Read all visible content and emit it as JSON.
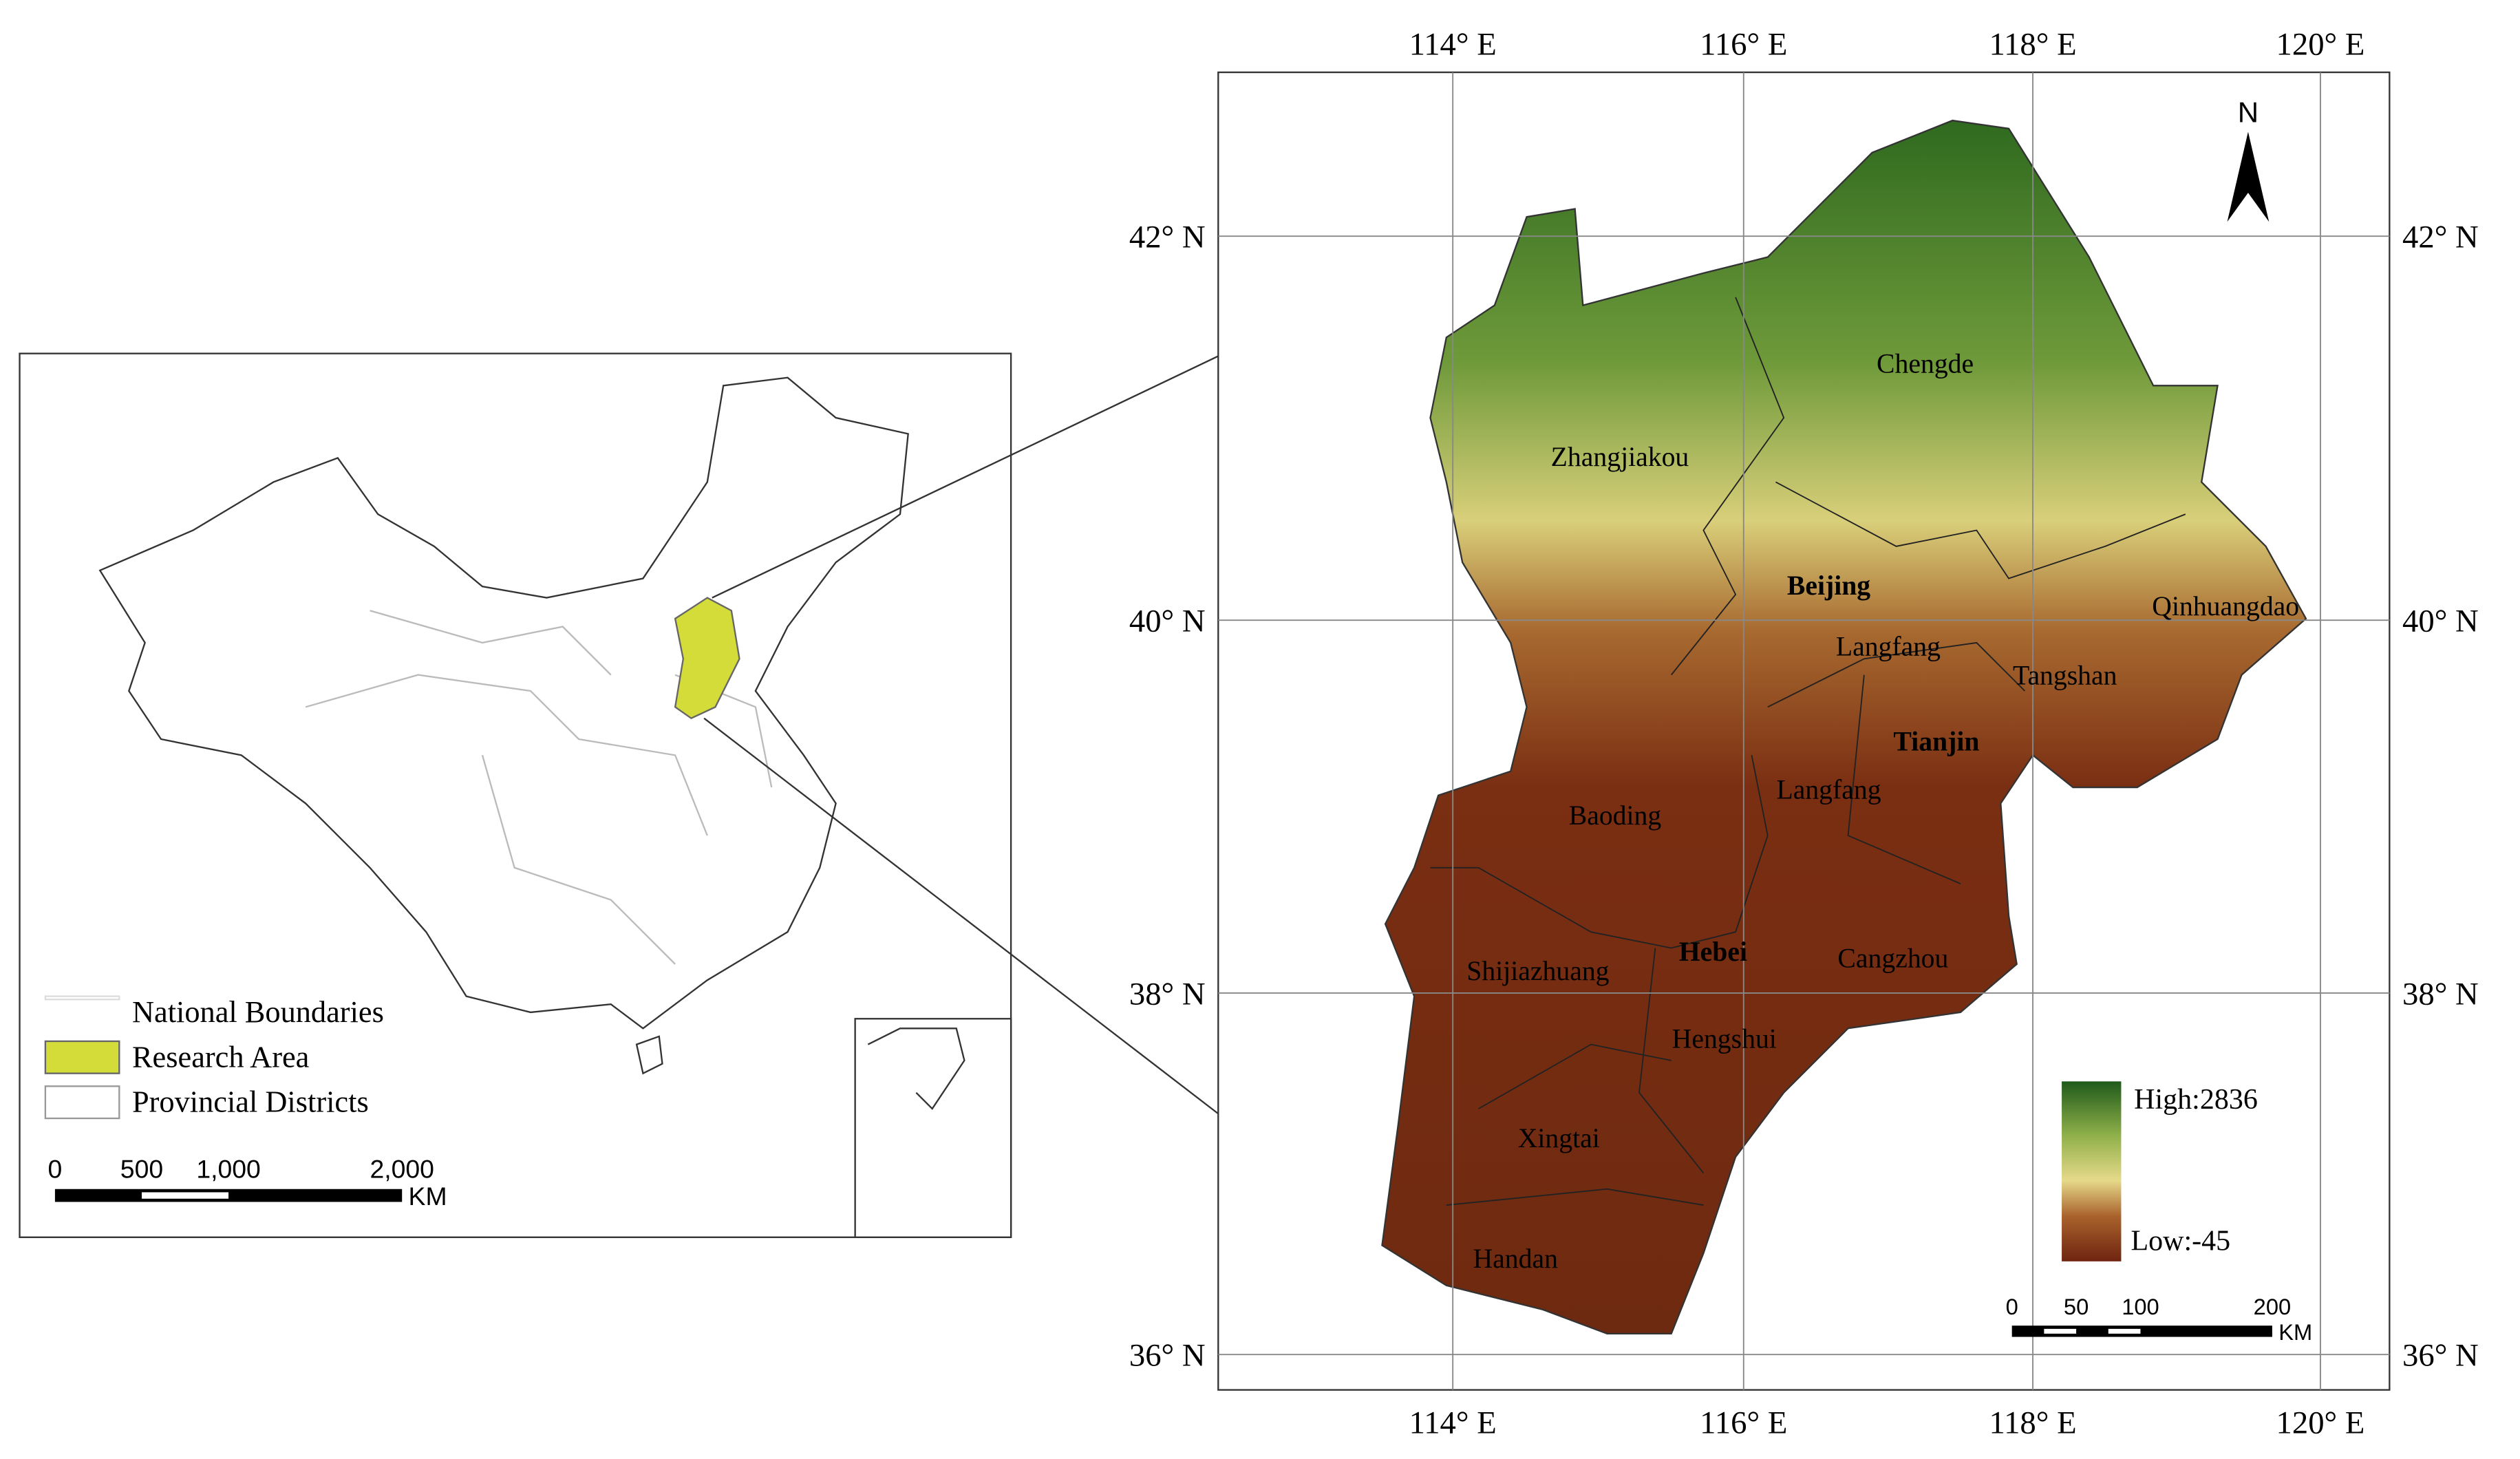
{
  "inset_map": {
    "legend": [
      "National Boundaries",
      "Research Area",
      "Provincial Districts"
    ],
    "scale_labels": [
      "0",
      "500",
      "1,000",
      "2,000"
    ],
    "scale_unit": "KM"
  },
  "main_map": {
    "north": "N",
    "lon_labels": [
      "114° E",
      "116° E",
      "118° E",
      "120° E"
    ],
    "lat_labels": [
      "42° N",
      "40° N",
      "38° N",
      "36° N"
    ],
    "cities": [
      "Chengde",
      "Zhangjiakou",
      "Beijing",
      "Qinhuangdao",
      "Langfang",
      "Tangshan",
      "Tianjin",
      "Langfang",
      "Baoding",
      "Shijiazhuang",
      "Hebei",
      "Cangzhou",
      "Hengshui",
      "Xingtai",
      "Handan"
    ],
    "legend": {
      "high": "High:2836",
      "low": "Low:-45"
    },
    "scale_labels": [
      "0",
      "50",
      "100",
      "200"
    ],
    "scale_unit": "KM"
  }
}
